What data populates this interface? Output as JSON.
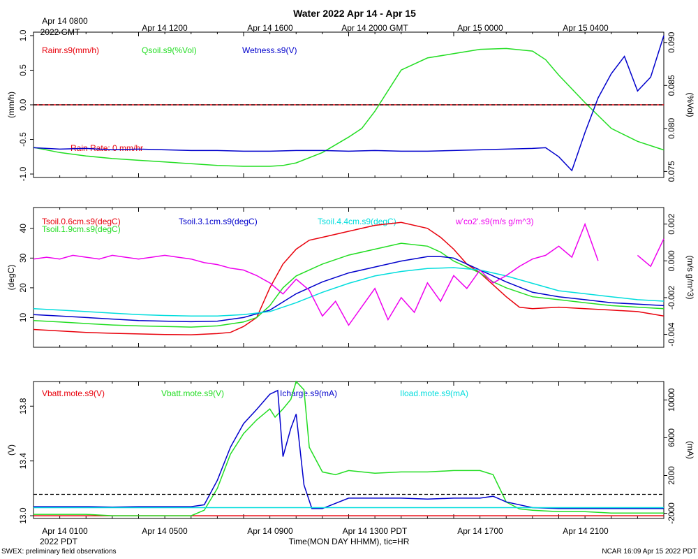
{
  "chart_data": {
    "type": "line",
    "title": "Water 2022 Apr 14 - Apr 15",
    "top_time_labels": [
      "Apr 14 0800",
      "Apr 14 1200",
      "Apr 14 1600",
      "Apr 14 2000 GMT",
      "Apr 15 0000",
      "Apr 15 0400"
    ],
    "top_year_label": "2022 GMT",
    "bottom_time_labels": [
      "Apr 14 0100",
      "Apr 14 0500",
      "Apr 14 0900",
      "Apr 14 1300 PDT",
      "Apr 14 1700",
      "Apr 14 2100"
    ],
    "bottom_year_label": "2022 PDT",
    "xlabel": "Time(MON DAY HHMM), tic=HR",
    "footer_left": "SWEX: preliminary field observations",
    "footer_right": "NCAR 16:09 Apr 15 2022 PDT",
    "x_range_hours": [
      0,
      24
    ],
    "panels": [
      {
        "ylabel_left": "(mm/h)",
        "ylabel_right": "(%Vol)",
        "ylim_left": [
          -1.05,
          1.05
        ],
        "yticks_left": [
          -1.0,
          -0.5,
          0.0,
          0.5,
          1.0
        ],
        "ytick_labels_left": [
          "-1.0",
          "-0.5",
          "0.0",
          "0.5",
          "1.0"
        ],
        "ylim_right": [
          0.0743,
          0.0912
        ],
        "yticks_right": [
          0.075,
          0.08,
          0.085,
          0.09
        ],
        "ytick_labels_right": [
          "0.075",
          "0.080",
          "0.085",
          "0.090"
        ],
        "zero_line_left": 0.0,
        "annotation": "Rain Rate: 0 mm/hr",
        "series": [
          {
            "name": "Rainr.s9(mm/h)",
            "color": "#e8000b",
            "axis": "left",
            "x": [
              0,
              24
            ],
            "y": [
              0,
              0
            ]
          },
          {
            "name": "Qsoil.s9(%Vol)",
            "color": "#22dd22",
            "axis": "right",
            "x": [
              0,
              1,
              2,
              3,
              4,
              5,
              6,
              7,
              8,
              9,
              9.5,
              10,
              11,
              12,
              12.5,
              13,
              14,
              15,
              16,
              17,
              18,
              19,
              19.5,
              20,
              21,
              22,
              23,
              24
            ],
            "y": [
              0.0778,
              0.0772,
              0.0768,
              0.0765,
              0.0763,
              0.0761,
              0.0759,
              0.0757,
              0.0756,
              0.0756,
              0.0757,
              0.076,
              0.0772,
              0.079,
              0.08,
              0.082,
              0.0868,
              0.0882,
              0.0887,
              0.0892,
              0.0893,
              0.089,
              0.088,
              0.0862,
              0.083,
              0.08,
              0.0785,
              0.0775
            ]
          },
          {
            "name": "Wetness.s9(V)",
            "color": "#0000cc",
            "axis": "left",
            "x": [
              0,
              1,
              2,
              3,
              4,
              5,
              6,
              7,
              8,
              9,
              10,
              11,
              12,
              13,
              14,
              15,
              16,
              17,
              18,
              19,
              19.5,
              20,
              20.5,
              21,
              21.5,
              22,
              22.5,
              23,
              23.5,
              24
            ],
            "y": [
              -0.62,
              -0.64,
              -0.63,
              -0.65,
              -0.64,
              -0.65,
              -0.66,
              -0.66,
              -0.67,
              -0.67,
              -0.66,
              -0.66,
              -0.67,
              -0.66,
              -0.67,
              -0.67,
              -0.66,
              -0.65,
              -0.64,
              -0.63,
              -0.62,
              -0.75,
              -0.95,
              -0.4,
              0.1,
              0.45,
              0.7,
              0.2,
              0.4,
              1.0
            ]
          },
          {
            "name": "_zero_line",
            "color": "#000000",
            "axis": "left",
            "x": [
              0,
              24
            ],
            "y": [
              0,
              0
            ]
          }
        ],
        "legend": [
          "Rainr.s9(mm/h)",
          "Qsoil.s9(%Vol)",
          "Wetness.s9(V)"
        ]
      },
      {
        "ylabel_left": "(degC)",
        "ylabel_right": "(m/s g/m^3)",
        "ylim_left": [
          0,
          47
        ],
        "yticks_left": [
          10,
          20,
          30,
          40
        ],
        "ytick_labels_left": [
          "10",
          "20",
          "30",
          "40"
        ],
        "ylim_right": [
          -0.0047,
          0.0029
        ],
        "yticks_right": [
          -0.004,
          -0.002,
          0.0,
          0.002
        ],
        "ytick_labels_right": [
          "-0.004",
          "-0.002",
          "0.000",
          "0.002"
        ],
        "series": [
          {
            "name": "Tsoil.0.6cm.s9(degC)",
            "color": "#e8000b",
            "axis": "left",
            "x": [
              0,
              1,
              2,
              3,
              4,
              5,
              6,
              7,
              7.5,
              8,
              8.5,
              9,
              9.5,
              10,
              10.5,
              11,
              12,
              13,
              14,
              15,
              15.5,
              16,
              16.5,
              17,
              17.5,
              18,
              18.5,
              19,
              20,
              21,
              22,
              23,
              24
            ],
            "y": [
              6.0,
              5.5,
              5.0,
              4.7,
              4.5,
              4.3,
              4.2,
              4.6,
              5.0,
              7.0,
              10.0,
              20.0,
              28.0,
              33.0,
              36.0,
              37.0,
              39.0,
              41.0,
              42.0,
              40.0,
              37.0,
              33.0,
              28.0,
              25.0,
              21.0,
              17.0,
              13.5,
              13.0,
              13.5,
              13.0,
              12.5,
              12.0,
              10.5
            ]
          },
          {
            "name": "Tsoil.1.9cm.s9(degC)",
            "color": "#22dd22",
            "axis": "left",
            "x": [
              0,
              1,
              2,
              3,
              4,
              5,
              6,
              7,
              8,
              8.5,
              9,
              9.5,
              10,
              11,
              12,
              13,
              14,
              15,
              15.5,
              16,
              17,
              17.5,
              18,
              19,
              20,
              21,
              22,
              23,
              24
            ],
            "y": [
              9.0,
              8.5,
              8.0,
              7.5,
              7.2,
              7.0,
              6.8,
              7.2,
              8.5,
              10.0,
              14.0,
              20.0,
              24.0,
              28.0,
              31.0,
              33.0,
              35.0,
              34.0,
              32.0,
              29.0,
              25.0,
              22.0,
              20.0,
              17.0,
              16.0,
              15.0,
              14.0,
              13.5,
              13.0
            ]
          },
          {
            "name": "Tsoil.3.1cm.s9(degC)",
            "color": "#0000cc",
            "axis": "left",
            "x": [
              0,
              1,
              2,
              3,
              4,
              5,
              6,
              7,
              8,
              9,
              10,
              11,
              12,
              13,
              14,
              15,
              15.5,
              16,
              17,
              18,
              19,
              20,
              21,
              22,
              23,
              24
            ],
            "y": [
              11.0,
              10.5,
              10.0,
              9.5,
              9.0,
              8.8,
              8.6,
              8.8,
              10.0,
              12.5,
              18.0,
              22.0,
              25.0,
              27.0,
              29.0,
              30.5,
              30.5,
              30.0,
              26.0,
              22.0,
              18.5,
              17.0,
              16.0,
              15.0,
              14.5,
              14.0
            ]
          },
          {
            "name": "Tsoil.4.4cm.s9(degC)",
            "color": "#00dddd",
            "axis": "left",
            "x": [
              0,
              1,
              2,
              3,
              4,
              5,
              6,
              7,
              8,
              9,
              10,
              11,
              12,
              13,
              14,
              15,
              16,
              17,
              18,
              19,
              20,
              21,
              22,
              23,
              24
            ],
            "y": [
              13.0,
              12.5,
              12.0,
              11.5,
              11.0,
              10.7,
              10.5,
              10.5,
              11.0,
              12.0,
              15.0,
              18.5,
              21.5,
              24.0,
              25.5,
              26.5,
              26.8,
              26.0,
              24.0,
              21.5,
              19.0,
              18.0,
              17.0,
              16.0,
              15.5
            ]
          },
          {
            "name": "w'co2'.s9(m/s g/m^3)",
            "color": "#ee00ee",
            "axis": "right",
            "x": [
              0,
              0.5,
              1,
              1.5,
              2,
              2.5,
              3,
              3.5,
              4,
              4.5,
              5,
              5.5,
              6,
              6.5,
              7,
              7.5,
              8,
              8.5,
              9,
              9.5,
              10,
              10.5,
              11,
              11.5,
              12,
              12.5,
              13,
              13.5,
              14,
              14.5,
              15,
              15.5,
              16,
              16.5,
              17,
              17.5,
              18,
              18.5,
              19,
              19.5,
              20,
              20.5,
              21,
              21.5,
              22,
              22.5,
              23,
              23.5,
              24
            ],
            "y": [
              0.0001,
              0.0002,
              0.0001,
              0.0003,
              0.0002,
              0.0001,
              0.0003,
              0.0002,
              0.0001,
              0.0002,
              0.0003,
              0.0002,
              0.0001,
              -0.0001,
              -0.0002,
              -0.0004,
              -0.0005,
              -0.0008,
              -0.0012,
              -0.0018,
              -0.001,
              -0.0016,
              -0.003,
              -0.0022,
              -0.0035,
              -0.0025,
              -0.0015,
              -0.0032,
              -0.002,
              -0.0028,
              -0.0012,
              -0.0022,
              -0.0008,
              -0.0015,
              -0.0005,
              -0.0012,
              -0.0008,
              -0.0003,
              0.0001,
              0.0003,
              0.0008,
              0.0002,
              0.002,
              0.0,
              null,
              null,
              0.0003,
              -0.0003,
              0.0012
            ]
          }
        ],
        "legend": [
          "Tsoil.0.6cm.s9(degC)",
          "Tsoil.1.9cm.s9(degC)",
          "Tsoil.3.1cm.s9(degC)",
          "Tsoil.4.4cm.s9(degC)",
          "w'co2'.s9(m/s g/m^3)"
        ]
      },
      {
        "ylabel_left": "(V)",
        "ylabel_right": "(mA)",
        "ylim_left": [
          12.98,
          13.98
        ],
        "yticks_left": [
          13.0,
          13.4,
          13.8
        ],
        "ytick_labels_left": [
          "13.0",
          "13.4",
          "13.8"
        ],
        "ylim_right": [
          -2550,
          11950
        ],
        "yticks_right": [
          -2000,
          2000,
          6000,
          10000
        ],
        "ytick_labels_right": [
          "-2000",
          "2000",
          "6000",
          "10000"
        ],
        "series": [
          {
            "name": "Vbatt.mote.s9(V)",
            "color": "#e8000b",
            "axis": "left",
            "x": [
              0,
              24
            ],
            "y": [
              13.0,
              13.0
            ]
          },
          {
            "name": "Vbatt.mote.s9(V)",
            "color": "#22dd22",
            "axis": "left",
            "x": [
              0,
              1,
              2,
              3,
              4,
              5,
              6,
              6.5,
              7,
              7.5,
              8,
              8.5,
              9,
              9.2,
              9.5,
              9.8,
              10,
              10.3,
              10.5,
              11,
              11.5,
              12,
              13,
              14,
              15,
              16,
              17,
              17.5,
              18,
              18.5,
              19,
              20,
              21,
              22,
              23,
              24
            ],
            "y": [
              13.01,
              13.01,
              13.01,
              13.0,
              13.0,
              13.0,
              13.0,
              13.04,
              13.2,
              13.45,
              13.6,
              13.7,
              13.78,
              13.72,
              13.78,
              13.85,
              13.98,
              13.92,
              13.5,
              13.32,
              13.3,
              13.33,
              13.31,
              13.32,
              13.32,
              13.33,
              13.33,
              13.3,
              13.1,
              13.05,
              13.04,
              13.03,
              13.03,
              13.02,
              13.02,
              13.02
            ]
          },
          {
            "name": "Icharge.s9(mA)",
            "color": "#0000cc",
            "axis": "right",
            "x": [
              0,
              1,
              2,
              3,
              4,
              5,
              6,
              6.5,
              7,
              7.5,
              8,
              8.5,
              9,
              9.3,
              9.5,
              9.8,
              10,
              10.3,
              10.6,
              11,
              12,
              13,
              14,
              15,
              16,
              17,
              17.5,
              18,
              19,
              20,
              21,
              22,
              23,
              24
            ],
            "y": [
              -1300,
              -1300,
              -1300,
              -1350,
              -1300,
              -1300,
              -1300,
              -1100,
              1500,
              5000,
              7500,
              9000,
              10600,
              11000,
              4000,
              7000,
              8500,
              1000,
              -1500,
              -1500,
              -400,
              -400,
              -400,
              -500,
              -400,
              -400,
              -200,
              -800,
              -1400,
              -1500,
              -1500,
              -1500,
              -1500,
              -1500
            ]
          },
          {
            "name": "Iload.mote.s9(mA)",
            "color": "#00dddd",
            "axis": "right",
            "x": [
              0,
              24
            ],
            "y": [
              -1400,
              -1400
            ]
          },
          {
            "name": "_zero_line",
            "color": "#000000",
            "axis": "right",
            "x": [
              0,
              24
            ],
            "y": [
              0,
              0
            ]
          }
        ],
        "legend": [
          "Vbatt.mote.s9(V)",
          "Vbatt.mote.s9(V)",
          "Icharge.s9(mA)",
          "Iload.mote.s9(mA)"
        ]
      }
    ],
    "colors": {
      "red": "#e8000b",
      "green": "#22dd22",
      "blue": "#0000cc",
      "cyan": "#00dddd",
      "magenta": "#ee00ee",
      "axis": "#000000"
    }
  }
}
